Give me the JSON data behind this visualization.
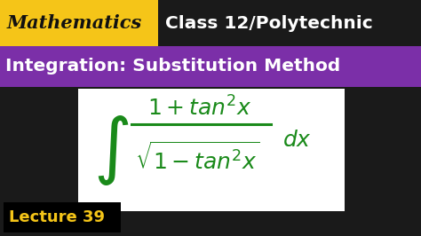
{
  "bg_color": "#1a1a1a",
  "top_bar_left_color": "#f5c518",
  "header_bar_color": "#7b2fa8",
  "top_right_text_color": "#ffffff",
  "header_text_color": "#ffffff",
  "formula_bg_color": "#ffffff",
  "formula_text_color": "#1a8a1a",
  "lecture_bg_color": "#000000",
  "lecture_text_color": "#f5c518",
  "mathematics_label": "Mathematics",
  "class_label": "Class 12/Polytechnic",
  "integration_label": "Integration: Substitution Method",
  "lecture_label": "Lecture 39"
}
